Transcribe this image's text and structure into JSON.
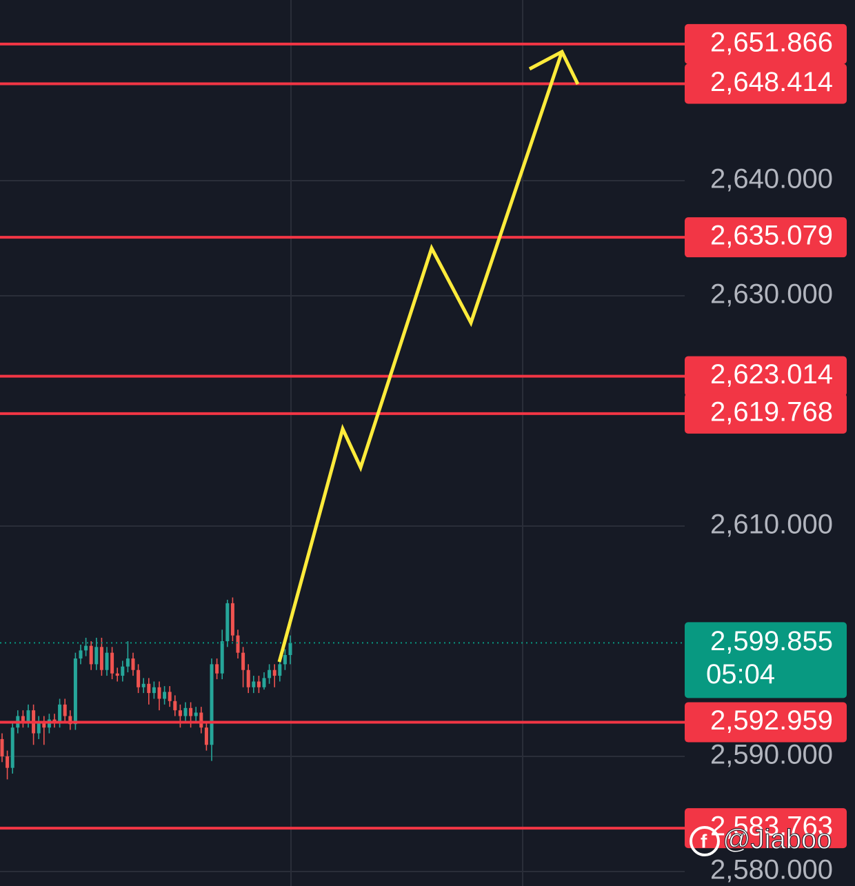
{
  "chart_data": {
    "type": "candlestick",
    "ylim": [
      2578.74,
      2655.69
    ],
    "yticks": [
      {
        "value": 2640,
        "label": "2,640.000"
      },
      {
        "value": 2630,
        "label": "2,630.000"
      },
      {
        "value": 2610,
        "label": "2,610.000"
      },
      {
        "value": 2590,
        "label": "2,590.000"
      },
      {
        "value": 2580,
        "label": "2,580.000"
      }
    ],
    "grid": true,
    "up_color": "#26a69a",
    "down_color": "#ef5350",
    "candles": {
      "open": [
        2591.5,
        2590.0,
        2589.0,
        2592.5,
        2593.5,
        2593.0,
        2594.0,
        2592.0,
        2593.0,
        2592.5,
        2593.2,
        2593.0,
        2594.5,
        2593.5,
        2592.8,
        2598.5,
        2599.2,
        2599.6,
        2598.0,
        2599.5,
        2597.5,
        2599.0,
        2597.2,
        2597.0,
        2597.8,
        2598.5,
        2597.5,
        2596.0,
        2596.3,
        2595.5,
        2596.0,
        2595.0,
        2595.6,
        2594.8,
        2594.0,
        2593.5,
        2594.2,
        2593.5,
        2593.8,
        2592.5,
        2591.0,
        2598.0,
        2597.2,
        2600.0,
        2603.3,
        2600.5,
        2599.0,
        2597.5,
        2596.0,
        2596.5,
        2596.0,
        2596.8,
        2597.5,
        2597.0,
        2598.0,
        2598.8
      ],
      "high": [
        2592.0,
        2590.5,
        2593.0,
        2594.0,
        2594.0,
        2594.5,
        2594.5,
        2593.5,
        2593.5,
        2593.7,
        2593.7,
        2595.0,
        2595.0,
        2594.0,
        2599.0,
        2599.7,
        2600.3,
        2600.0,
        2600.3,
        2600.3,
        2599.5,
        2599.5,
        2597.7,
        2598.3,
        2600.0,
        2599.0,
        2598.0,
        2596.8,
        2596.8,
        2596.5,
        2596.5,
        2596.1,
        2596.1,
        2595.3,
        2594.5,
        2594.7,
        2594.7,
        2594.3,
        2594.3,
        2593.0,
        2598.5,
        2598.5,
        2601.0,
        2603.6,
        2603.8,
        2601.0,
        2599.5,
        2598.0,
        2597.0,
        2597.0,
        2597.3,
        2598.0,
        2598.0,
        2598.5,
        2599.3,
        2600.5
      ],
      "low": [
        2589.5,
        2588.0,
        2588.5,
        2592.0,
        2592.5,
        2592.5,
        2591.0,
        2591.5,
        2591.0,
        2592.0,
        2592.5,
        2592.5,
        2593.0,
        2592.3,
        2592.3,
        2598.0,
        2598.7,
        2597.5,
        2597.5,
        2597.0,
        2597.0,
        2596.7,
        2596.5,
        2596.5,
        2597.3,
        2597.0,
        2595.5,
        2595.5,
        2594.5,
        2595.0,
        2594.0,
        2594.5,
        2594.3,
        2593.5,
        2592.5,
        2593.0,
        2592.5,
        2593.0,
        2592.0,
        2590.5,
        2589.6,
        2596.7,
        2596.7,
        2599.5,
        2600.0,
        2598.5,
        2596.0,
        2595.5,
        2595.5,
        2595.5,
        2595.8,
        2596.3,
        2596.0,
        2596.5,
        2597.5,
        2598.0
      ],
      "close": [
        2590.0,
        2589.0,
        2592.5,
        2593.5,
        2593.0,
        2594.0,
        2592.0,
        2593.0,
        2592.5,
        2593.2,
        2593.0,
        2594.5,
        2593.5,
        2592.8,
        2598.5,
        2599.2,
        2599.6,
        2598.0,
        2599.5,
        2597.5,
        2599.0,
        2597.2,
        2597.0,
        2597.8,
        2598.5,
        2597.5,
        2596.0,
        2596.3,
        2595.5,
        2596.0,
        2595.0,
        2595.6,
        2594.8,
        2594.0,
        2593.5,
        2594.2,
        2593.5,
        2593.8,
        2592.5,
        2591.0,
        2598.0,
        2597.2,
        2600.0,
        2603.3,
        2600.5,
        2599.0,
        2597.5,
        2596.0,
        2596.5,
        2596.0,
        2596.8,
        2597.5,
        2597.0,
        2598.0,
        2598.8,
        2599.855
      ]
    },
    "levels": [
      {
        "value": 2651.866,
        "label": "2,651.866"
      },
      {
        "value": 2648.414,
        "label": "2,648.414"
      },
      {
        "value": 2635.079,
        "label": "2,635.079"
      },
      {
        "value": 2623.014,
        "label": "2,623.014"
      },
      {
        "value": 2619.768,
        "label": "2,619.768"
      },
      {
        "value": 2592.959,
        "label": "2,592.959"
      },
      {
        "value": 2583.763,
        "label": "2,583.763"
      }
    ],
    "level_color": "#f23645",
    "current_price": {
      "value": 2599.855,
      "label": "2,599.855",
      "countdown": "05:04",
      "color": "#089981"
    },
    "watermark": "@Jiaboo"
  }
}
